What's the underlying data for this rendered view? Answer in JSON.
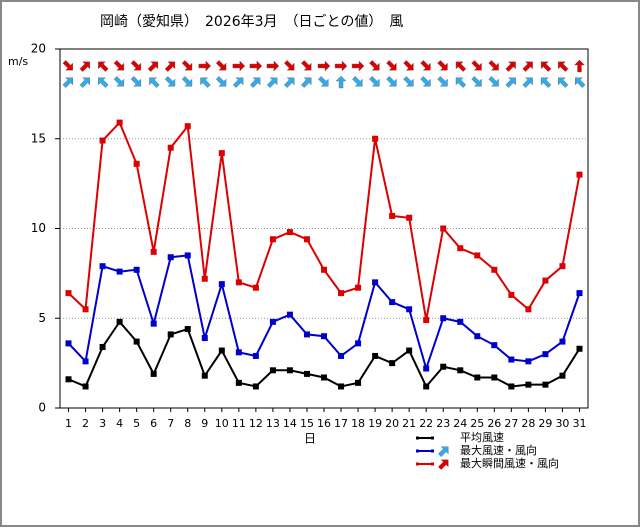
{
  "chart_data": {
    "type": "line",
    "title": "岡崎（愛知県）　2026年3月　（日ごとの値）　風",
    "y_label": "m/s",
    "x_label": "日",
    "x": [
      1,
      2,
      3,
      4,
      5,
      6,
      7,
      8,
      9,
      10,
      11,
      12,
      13,
      14,
      15,
      16,
      17,
      18,
      19,
      20,
      21,
      22,
      23,
      24,
      25,
      26,
      27,
      28,
      29,
      30,
      31
    ],
    "xlim": [
      0.5,
      31.5
    ],
    "ylim": [
      0,
      20
    ],
    "yticks": [
      0,
      5,
      10,
      15,
      20
    ],
    "grid": true,
    "series": [
      {
        "name": "平均風速",
        "color": "#000000",
        "values": [
          1.6,
          1.2,
          3.4,
          4.8,
          3.7,
          1.9,
          4.1,
          4.4,
          1.8,
          3.2,
          1.4,
          1.2,
          2.1,
          2.1,
          1.9,
          1.7,
          1.2,
          1.4,
          2.9,
          2.5,
          3.2,
          1.2,
          2.3,
          2.1,
          1.7,
          1.7,
          1.2,
          1.3,
          1.3,
          1.8,
          3.3
        ]
      },
      {
        "name": "最大風速・風向",
        "color": "#0000cc",
        "arrow_color": "#33aaee",
        "values": [
          3.6,
          2.6,
          7.9,
          7.6,
          7.7,
          4.7,
          8.4,
          8.5,
          3.9,
          6.9,
          3.1,
          2.9,
          4.8,
          5.2,
          4.1,
          4.0,
          2.9,
          3.6,
          7.0,
          5.9,
          5.5,
          2.2,
          5.0,
          4.8,
          4.0,
          3.5,
          2.7,
          2.6,
          3.0,
          3.7,
          6.4
        ],
        "directions": [
          45,
          45,
          315,
          135,
          135,
          315,
          135,
          135,
          315,
          135,
          45,
          45,
          45,
          45,
          45,
          135,
          0,
          135,
          135,
          135,
          135,
          135,
          135,
          315,
          135,
          135,
          45,
          45,
          315,
          315,
          315
        ]
      },
      {
        "name": "最大瞬間風速・風向",
        "color": "#dd0000",
        "arrow_color": "#dd0000",
        "values": [
          6.4,
          5.5,
          14.9,
          15.9,
          13.6,
          8.7,
          14.5,
          15.7,
          7.2,
          14.2,
          7.0,
          6.7,
          9.4,
          9.8,
          9.4,
          7.7,
          6.4,
          6.7,
          15.0,
          10.7,
          10.6,
          4.9,
          10.0,
          8.9,
          8.5,
          7.7,
          6.3,
          5.5,
          7.1,
          7.9,
          13.0
        ],
        "directions": [
          135,
          45,
          315,
          135,
          135,
          45,
          45,
          135,
          90,
          135,
          90,
          90,
          90,
          135,
          135,
          90,
          90,
          90,
          135,
          135,
          135,
          135,
          135,
          315,
          135,
          135,
          45,
          45,
          315,
          315,
          0
        ]
      }
    ]
  }
}
